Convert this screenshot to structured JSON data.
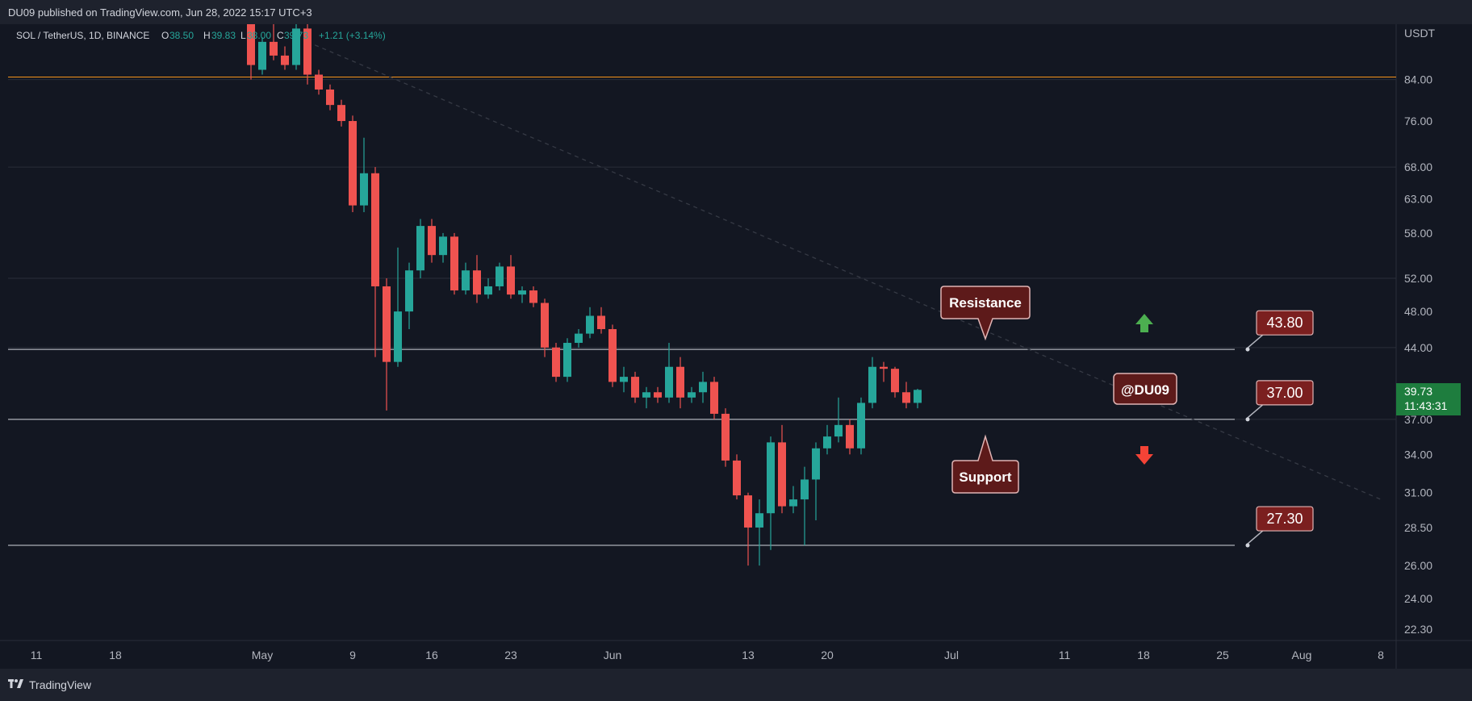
{
  "header": {
    "published": "DU09 published on TradingView.com, Jun 28, 2022 15:17 UTC+3"
  },
  "legend": {
    "symbol": "SOL / TetherUS, 1D, BINANCE",
    "o_label": "O",
    "o_val": "38.50",
    "h_label": "H",
    "h_val": "39.83",
    "l_label": "L",
    "l_val": "38.00",
    "c_label": "C",
    "c_val": "39.73",
    "change": "+1.21 (+3.14%)"
  },
  "footer": {
    "brand": "TradingView",
    "logo_icon": "tradingview-logo-icon"
  },
  "colors": {
    "up": "#26a69a",
    "down": "#ef5350",
    "bg": "#131722",
    "grid": "#2a2e39",
    "level": "#d1d4dc",
    "orange": "#f7931a",
    "box_bg": "#5d1a1a",
    "box_border": "#e0b4b4",
    "price_bg": "#7b1f1f",
    "current_bg": "#1e7d3e"
  },
  "annotations": {
    "resistance": "Resistance",
    "support": "Support",
    "watermark": "@DU09",
    "levels": [
      {
        "label": "43.80",
        "value": 43.8
      },
      {
        "label": "37.00",
        "value": 37.0
      },
      {
        "label": "27.30",
        "value": 27.3
      }
    ],
    "arrows": [
      {
        "icon": "green-up-arrow-icon",
        "direction": "up",
        "color": "#4caf50"
      },
      {
        "icon": "red-down-arrow-icon",
        "direction": "down",
        "color": "#f44336"
      }
    ]
  },
  "current_price": {
    "price": "39.73",
    "countdown": "11:43:31"
  },
  "chart_data": {
    "type": "candlestick",
    "symbol": "SOL / TetherUS",
    "interval": "1D",
    "y_axis": {
      "unit": "USDT",
      "scale": "log",
      "range": [
        21.7,
        96
      ],
      "ticks": [
        84,
        76,
        68,
        63,
        58,
        52,
        48,
        44,
        37,
        34,
        31,
        28.5,
        26,
        24,
        22.3
      ],
      "tick_labels": [
        "84.00",
        "76.00",
        "68.00",
        "63.00",
        "58.00",
        "52.00",
        "48.00",
        "44.00",
        "37.00",
        "34.00",
        "31.00",
        "28.50",
        "26.00",
        "24.00",
        "22.30"
      ]
    },
    "x_axis": {
      "ticks": [
        {
          "label": "11",
          "date": "2022-04-11"
        },
        {
          "label": "18",
          "date": "2022-04-18"
        },
        {
          "label": "May",
          "date": "2022-05-01"
        },
        {
          "label": "9",
          "date": "2022-05-09"
        },
        {
          "label": "16",
          "date": "2022-05-16"
        },
        {
          "label": "23",
          "date": "2022-05-23"
        },
        {
          "label": "Jun",
          "date": "2022-06-01"
        },
        {
          "label": "13",
          "date": "2022-06-13"
        },
        {
          "label": "20",
          "date": "2022-06-20"
        },
        {
          "label": "Jul",
          "date": "2022-07-01"
        },
        {
          "label": "11",
          "date": "2022-07-11"
        },
        {
          "label": "18",
          "date": "2022-07-18"
        },
        {
          "label": "25",
          "date": "2022-07-25"
        },
        {
          "label": "Aug",
          "date": "2022-08-01"
        },
        {
          "label": "8",
          "date": "2022-08-08"
        }
      ]
    },
    "horizontal_lines": [
      84.5,
      43.8,
      37.0,
      27.3
    ],
    "trendline": {
      "from": {
        "date": "2022-05-05",
        "price": 92
      },
      "to": {
        "date": "2022-08-08",
        "price": 30.5
      }
    },
    "candles": [
      {
        "date": "2022-04-30",
        "o": 99,
        "h": 101,
        "l": 84,
        "c": 87
      },
      {
        "date": "2022-05-01",
        "o": 86,
        "h": 93,
        "l": 85,
        "c": 92
      },
      {
        "date": "2022-05-02",
        "o": 92,
        "h": 96,
        "l": 88,
        "c": 89
      },
      {
        "date": "2022-05-03",
        "o": 89,
        "h": 91,
        "l": 86,
        "c": 87
      },
      {
        "date": "2022-05-04",
        "o": 87,
        "h": 97,
        "l": 86,
        "c": 95
      },
      {
        "date": "2022-05-05",
        "o": 95,
        "h": 97,
        "l": 83,
        "c": 85
      },
      {
        "date": "2022-05-06",
        "o": 85,
        "h": 86,
        "l": 81,
        "c": 82
      },
      {
        "date": "2022-05-07",
        "o": 82,
        "h": 83,
        "l": 78,
        "c": 79
      },
      {
        "date": "2022-05-08",
        "o": 79,
        "h": 80,
        "l": 75,
        "c": 76
      },
      {
        "date": "2022-05-09",
        "o": 76,
        "h": 77,
        "l": 61,
        "c": 62
      },
      {
        "date": "2022-05-10",
        "o": 62,
        "h": 73,
        "l": 61,
        "c": 67
      },
      {
        "date": "2022-05-11",
        "o": 67,
        "h": 68,
        "l": 43,
        "c": 51
      },
      {
        "date": "2022-05-12",
        "o": 51,
        "h": 52,
        "l": 37.8,
        "c": 42.5
      },
      {
        "date": "2022-05-13",
        "o": 42.5,
        "h": 56,
        "l": 42,
        "c": 48
      },
      {
        "date": "2022-05-14",
        "o": 48,
        "h": 54,
        "l": 46,
        "c": 53
      },
      {
        "date": "2022-05-15",
        "o": 53,
        "h": 60,
        "l": 52,
        "c": 59
      },
      {
        "date": "2022-05-16",
        "o": 59,
        "h": 60,
        "l": 54,
        "c": 55
      },
      {
        "date": "2022-05-17",
        "o": 55,
        "h": 58,
        "l": 54,
        "c": 57.5
      },
      {
        "date": "2022-05-18",
        "o": 57.5,
        "h": 58,
        "l": 50,
        "c": 50.5
      },
      {
        "date": "2022-05-19",
        "o": 50.5,
        "h": 54,
        "l": 50,
        "c": 53
      },
      {
        "date": "2022-05-20",
        "o": 53,
        "h": 55,
        "l": 49,
        "c": 50
      },
      {
        "date": "2022-05-21",
        "o": 50,
        "h": 52,
        "l": 49.5,
        "c": 51
      },
      {
        "date": "2022-05-22",
        "o": 51,
        "h": 54,
        "l": 50.5,
        "c": 53.5
      },
      {
        "date": "2022-05-23",
        "o": 53.5,
        "h": 55,
        "l": 49.5,
        "c": 50
      },
      {
        "date": "2022-05-24",
        "o": 50,
        "h": 51,
        "l": 49,
        "c": 50.5
      },
      {
        "date": "2022-05-25",
        "o": 50.5,
        "h": 51,
        "l": 48.5,
        "c": 49
      },
      {
        "date": "2022-05-26",
        "o": 49,
        "h": 49.5,
        "l": 43,
        "c": 44
      },
      {
        "date": "2022-05-27",
        "o": 44,
        "h": 44.5,
        "l": 40.5,
        "c": 41
      },
      {
        "date": "2022-05-28",
        "o": 41,
        "h": 45,
        "l": 40.5,
        "c": 44.5
      },
      {
        "date": "2022-05-29",
        "o": 44.5,
        "h": 46,
        "l": 44,
        "c": 45.5
      },
      {
        "date": "2022-05-30",
        "o": 45.5,
        "h": 48.5,
        "l": 45,
        "c": 47.5
      },
      {
        "date": "2022-05-31",
        "o": 47.5,
        "h": 48.5,
        "l": 45.5,
        "c": 46
      },
      {
        "date": "2022-06-01",
        "o": 46,
        "h": 46.5,
        "l": 40,
        "c": 40.5
      },
      {
        "date": "2022-06-02",
        "o": 40.5,
        "h": 42,
        "l": 39.5,
        "c": 41
      },
      {
        "date": "2022-06-03",
        "o": 41,
        "h": 41.5,
        "l": 38.5,
        "c": 39
      },
      {
        "date": "2022-06-04",
        "o": 39,
        "h": 40,
        "l": 38,
        "c": 39.5
      },
      {
        "date": "2022-06-05",
        "o": 39.5,
        "h": 40,
        "l": 38.5,
        "c": 39
      },
      {
        "date": "2022-06-06",
        "o": 39,
        "h": 44.5,
        "l": 38.5,
        "c": 42
      },
      {
        "date": "2022-06-07",
        "o": 42,
        "h": 43,
        "l": 38,
        "c": 39
      },
      {
        "date": "2022-06-08",
        "o": 39,
        "h": 40,
        "l": 38.5,
        "c": 39.5
      },
      {
        "date": "2022-06-09",
        "o": 39.5,
        "h": 41.5,
        "l": 38.5,
        "c": 40.5
      },
      {
        "date": "2022-06-10",
        "o": 40.5,
        "h": 41,
        "l": 37,
        "c": 37.5
      },
      {
        "date": "2022-06-11",
        "o": 37.5,
        "h": 38,
        "l": 33,
        "c": 33.5
      },
      {
        "date": "2022-06-12",
        "o": 33.5,
        "h": 34,
        "l": 30.5,
        "c": 30.8
      },
      {
        "date": "2022-06-13",
        "o": 30.8,
        "h": 31,
        "l": 26,
        "c": 28.5
      },
      {
        "date": "2022-06-14",
        "o": 28.5,
        "h": 30.5,
        "l": 26,
        "c": 29.5
      },
      {
        "date": "2022-06-15",
        "o": 29.5,
        "h": 35.5,
        "l": 27,
        "c": 35
      },
      {
        "date": "2022-06-16",
        "o": 35,
        "h": 36.5,
        "l": 29.5,
        "c": 30
      },
      {
        "date": "2022-06-17",
        "o": 30,
        "h": 31.5,
        "l": 29.5,
        "c": 30.5
      },
      {
        "date": "2022-06-18",
        "o": 30.5,
        "h": 33,
        "l": 27.3,
        "c": 32
      },
      {
        "date": "2022-06-19",
        "o": 32,
        "h": 35,
        "l": 29,
        "c": 34.5
      },
      {
        "date": "2022-06-20",
        "o": 34.5,
        "h": 36.5,
        "l": 34,
        "c": 35.5
      },
      {
        "date": "2022-06-21",
        "o": 35.5,
        "h": 39,
        "l": 35,
        "c": 36.5
      },
      {
        "date": "2022-06-22",
        "o": 36.5,
        "h": 37,
        "l": 34,
        "c": 34.5
      },
      {
        "date": "2022-06-23",
        "o": 34.5,
        "h": 39,
        "l": 34,
        "c": 38.5
      },
      {
        "date": "2022-06-24",
        "o": 38.5,
        "h": 43,
        "l": 38,
        "c": 42
      },
      {
        "date": "2022-06-25",
        "o": 42,
        "h": 42.5,
        "l": 40.5,
        "c": 41.8
      },
      {
        "date": "2022-06-26",
        "o": 41.8,
        "h": 42,
        "l": 39,
        "c": 39.5
      },
      {
        "date": "2022-06-27",
        "o": 39.5,
        "h": 40.5,
        "l": 38,
        "c": 38.5
      },
      {
        "date": "2022-06-28",
        "o": 38.5,
        "h": 39.83,
        "l": 38,
        "c": 39.73
      }
    ]
  }
}
